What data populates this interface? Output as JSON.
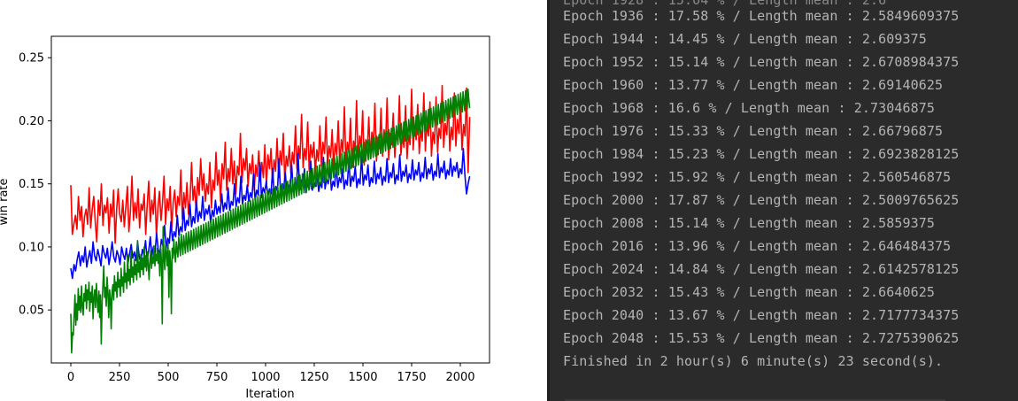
{
  "chart_data": {
    "type": "line",
    "xlabel": "Iteration",
    "ylabel": "win rate",
    "xlim": [
      -100,
      2150
    ],
    "ylim": [
      0.008,
      0.267
    ],
    "xticks": [
      0,
      250,
      500,
      750,
      1000,
      1250,
      1500,
      1750,
      2000
    ],
    "yticks": [
      0.05,
      0.1,
      0.15,
      0.2,
      0.25
    ],
    "ytick_labels": [
      "0.05",
      "0.10",
      "0.15",
      "0.20",
      "0.25"
    ],
    "grid": false,
    "series": [
      {
        "color": "#ff0000",
        "values": [
          0.149,
          0.11,
          0.118,
          0.125,
          0.114,
          0.14,
          0.121,
          0.132,
          0.108,
          0.124,
          0.13,
          0.118,
          0.147,
          0.115,
          0.13,
          0.14,
          0.12,
          0.104,
          0.137,
          0.125,
          0.15,
          0.117,
          0.133,
          0.127,
          0.139,
          0.111,
          0.134,
          0.124,
          0.145,
          0.103,
          0.13,
          0.146,
          0.126,
          0.12,
          0.137,
          0.116,
          0.131,
          0.148,
          0.112,
          0.128,
          0.156,
          0.121,
          0.135,
          0.123,
          0.146,
          0.115,
          0.134,
          0.129,
          0.142,
          0.11,
          0.133,
          0.152,
          0.12,
          0.137,
          0.126,
          0.147,
          0.108,
          0.131,
          0.144,
          0.121,
          0.135,
          0.156,
          0.118,
          0.138,
          0.129,
          0.148,
          0.114,
          0.136,
          0.145,
          0.124,
          0.14,
          0.133,
          0.161,
          0.122,
          0.143,
          0.131,
          0.151,
          0.126,
          0.138,
          0.167,
          0.137,
          0.148,
          0.129,
          0.155,
          0.141,
          0.17,
          0.145,
          0.158,
          0.136,
          0.15,
          0.142,
          0.167,
          0.131,
          0.153,
          0.145,
          0.175,
          0.149,
          0.161,
          0.136,
          0.166,
          0.154,
          0.183,
          0.145,
          0.162,
          0.152,
          0.178,
          0.15,
          0.168,
          0.142,
          0.164,
          0.157,
          0.19,
          0.151,
          0.17,
          0.161,
          0.178,
          0.148,
          0.166,
          0.158,
          0.173,
          0.145,
          0.165,
          0.156,
          0.176,
          0.152,
          0.167,
          0.155,
          0.181,
          0.149,
          0.173,
          0.162,
          0.178,
          0.151,
          0.169,
          0.16,
          0.186,
          0.155,
          0.176,
          0.165,
          0.19,
          0.153,
          0.172,
          0.164,
          0.18,
          0.158,
          0.175,
          0.166,
          0.196,
          0.162,
          0.18,
          0.17,
          0.205,
          0.163,
          0.178,
          0.169,
          0.199,
          0.16,
          0.181,
          0.171,
          0.183,
          0.159,
          0.177,
          0.168,
          0.196,
          0.164,
          0.183,
          0.174,
          0.203,
          0.165,
          0.18,
          0.171,
          0.193,
          0.162,
          0.182,
          0.173,
          0.2,
          0.166,
          0.185,
          0.175,
          0.211,
          0.167,
          0.183,
          0.174,
          0.202,
          0.163,
          0.184,
          0.176,
          0.216,
          0.168,
          0.188,
          0.179,
          0.208,
          0.165,
          0.185,
          0.177,
          0.203,
          0.17,
          0.191,
          0.18,
          0.214,
          0.168,
          0.187,
          0.178,
          0.21,
          0.172,
          0.193,
          0.182,
          0.218,
          0.169,
          0.19,
          0.181,
          0.206,
          0.171,
          0.192,
          0.183,
          0.22,
          0.173,
          0.188,
          0.179,
          0.212,
          0.17,
          0.189,
          0.181,
          0.225,
          0.177,
          0.196,
          0.185,
          0.213,
          0.174,
          0.193,
          0.184,
          0.222,
          0.176,
          0.197,
          0.188,
          0.215,
          0.172,
          0.191,
          0.182,
          0.219,
          0.175,
          0.194,
          0.186,
          0.228,
          0.179,
          0.198,
          0.189,
          0.217,
          0.176,
          0.195,
          0.185,
          0.222,
          0.18,
          0.201,
          0.19,
          0.216,
          0.177,
          0.197,
          0.188,
          0.226,
          0.159,
          0.203
        ]
      },
      {
        "color": "#0000ff",
        "values": [
          0.083,
          0.075,
          0.086,
          0.081,
          0.09,
          0.096,
          0.085,
          0.093,
          0.088,
          0.1,
          0.084,
          0.091,
          0.097,
          0.087,
          0.104,
          0.093,
          0.089,
          0.098,
          0.092,
          0.085,
          0.101,
          0.095,
          0.091,
          0.099,
          0.086,
          0.094,
          0.104,
          0.092,
          0.088,
          0.097,
          0.093,
          0.086,
          0.1,
          0.094,
          0.09,
          0.099,
          0.087,
          0.095,
          0.102,
          0.091,
          0.096,
          0.089,
          0.104,
          0.093,
          0.087,
          0.098,
          0.094,
          0.105,
          0.09,
          0.097,
          0.108,
          0.093,
          0.1,
          0.095,
          0.111,
          0.098,
          0.094,
          0.106,
          0.101,
          0.117,
          0.099,
          0.107,
          0.103,
          0.12,
          0.105,
          0.112,
          0.108,
          0.125,
          0.109,
          0.116,
          0.112,
          0.131,
          0.113,
          0.121,
          0.117,
          0.134,
          0.116,
          0.124,
          0.119,
          0.137,
          0.12,
          0.128,
          0.123,
          0.14,
          0.121,
          0.13,
          0.126,
          0.133,
          0.119,
          0.129,
          0.124,
          0.137,
          0.126,
          0.132,
          0.127,
          0.142,
          0.128,
          0.135,
          0.13,
          0.147,
          0.129,
          0.136,
          0.133,
          0.15,
          0.132,
          0.139,
          0.135,
          0.156,
          0.134,
          0.141,
          0.137,
          0.149,
          0.136,
          0.143,
          0.139,
          0.158,
          0.137,
          0.145,
          0.141,
          0.167,
          0.139,
          0.147,
          0.143,
          0.152,
          0.14,
          0.146,
          0.142,
          0.162,
          0.141,
          0.148,
          0.144,
          0.17,
          0.143,
          0.15,
          0.146,
          0.159,
          0.142,
          0.149,
          0.145,
          0.165,
          0.144,
          0.151,
          0.147,
          0.174,
          0.145,
          0.153,
          0.149,
          0.162,
          0.143,
          0.15,
          0.146,
          0.168,
          0.145,
          0.152,
          0.148,
          0.16,
          0.144,
          0.151,
          0.147,
          0.171,
          0.146,
          0.154,
          0.15,
          0.163,
          0.145,
          0.152,
          0.148,
          0.166,
          0.147,
          0.155,
          0.151,
          0.162,
          0.146,
          0.153,
          0.149,
          0.169,
          0.148,
          0.156,
          0.152,
          0.164,
          0.147,
          0.154,
          0.15,
          0.172,
          0.149,
          0.157,
          0.153,
          0.165,
          0.148,
          0.155,
          0.151,
          0.168,
          0.15,
          0.158,
          0.154,
          0.163,
          0.149,
          0.156,
          0.152,
          0.17,
          0.151,
          0.159,
          0.155,
          0.166,
          0.15,
          0.157,
          0.153,
          0.173,
          0.152,
          0.16,
          0.156,
          0.165,
          0.151,
          0.158,
          0.154,
          0.169,
          0.153,
          0.161,
          0.157,
          0.167,
          0.152,
          0.159,
          0.155,
          0.171,
          0.154,
          0.162,
          0.158,
          0.166,
          0.153,
          0.16,
          0.156,
          0.174,
          0.155,
          0.163,
          0.159,
          0.168,
          0.154,
          0.161,
          0.157,
          0.17,
          0.156,
          0.164,
          0.16,
          0.167,
          0.155,
          0.162,
          0.158,
          0.178,
          0.157,
          0.142,
          0.15,
          0.156
        ]
      },
      {
        "color": "#008000",
        "values": [
          0.047,
          0.016,
          0.032,
          0.03,
          0.045,
          0.062,
          0.038,
          0.055,
          0.042,
          0.067,
          0.05,
          0.061,
          0.048,
          0.069,
          0.053,
          0.046,
          0.063,
          0.057,
          0.07,
          0.051,
          0.066,
          0.058,
          0.072,
          0.049,
          0.064,
          0.056,
          0.069,
          0.043,
          0.06,
          0.066,
          0.052,
          0.071,
          0.058,
          0.048,
          0.065,
          0.044,
          0.062,
          0.023,
          0.057,
          0.07,
          0.085,
          0.06,
          0.068,
          0.053,
          0.076,
          0.064,
          0.044,
          0.066,
          0.059,
          0.035,
          0.063,
          0.07,
          0.058,
          0.077,
          0.065,
          0.072,
          0.06,
          0.08,
          0.068,
          0.074,
          0.061,
          0.083,
          0.069,
          0.076,
          0.064,
          0.088,
          0.072,
          0.079,
          0.067,
          0.094,
          0.073,
          0.082,
          0.07,
          0.097,
          0.076,
          0.084,
          0.072,
          0.09,
          0.078,
          0.086,
          0.074,
          0.105,
          0.08,
          0.088,
          0.076,
          0.094,
          0.082,
          0.091,
          0.078,
          0.1,
          0.084,
          0.093,
          0.081,
          0.096,
          0.086,
          0.074,
          0.089,
          0.097,
          0.083,
          0.092,
          0.087,
          0.101,
          0.085,
          0.094,
          0.089,
          0.099,
          0.087,
          0.095,
          0.077,
          0.1,
          0.089,
          0.039,
          0.116,
          0.093,
          0.082,
          0.102,
          0.094,
          0.085,
          0.103,
          0.06,
          0.097,
          0.088,
          0.047,
          0.099,
          0.091,
          0.106,
          0.095,
          0.088,
          0.104,
          0.097,
          0.092,
          0.108,
          0.1,
          0.093,
          0.11,
          0.101,
          0.094,
          0.109,
          0.102,
          0.095,
          0.111,
          0.103,
          0.096,
          0.112,
          0.104,
          0.097,
          0.113,
          0.105,
          0.098,
          0.114,
          0.106,
          0.099,
          0.115,
          0.107,
          0.1,
          0.116,
          0.108,
          0.101,
          0.117,
          0.109,
          0.102,
          0.118,
          0.11,
          0.103,
          0.119,
          0.111,
          0.104,
          0.12,
          0.112,
          0.105,
          0.121,
          0.113,
          0.106,
          0.122,
          0.114,
          0.107,
          0.123,
          0.115,
          0.108,
          0.124,
          0.116,
          0.109,
          0.125,
          0.117,
          0.11,
          0.126,
          0.118,
          0.111,
          0.127,
          0.119,
          0.112,
          0.128,
          0.12,
          0.113,
          0.129,
          0.121,
          0.114,
          0.13,
          0.122,
          0.115,
          0.131,
          0.123,
          0.116,
          0.132,
          0.124,
          0.117,
          0.133,
          0.125,
          0.118,
          0.134,
          0.126,
          0.119,
          0.135,
          0.127,
          0.12,
          0.136,
          0.128,
          0.121,
          0.137,
          0.129,
          0.122,
          0.138,
          0.13,
          0.123,
          0.139,
          0.131,
          0.124,
          0.14,
          0.132,
          0.125,
          0.141,
          0.133,
          0.126,
          0.142,
          0.134,
          0.127,
          0.143,
          0.135,
          0.128,
          0.144,
          0.136,
          0.129,
          0.145,
          0.137,
          0.13,
          0.146,
          0.138,
          0.131,
          0.147,
          0.139,
          0.132,
          0.148,
          0.14,
          0.133,
          0.149,
          0.141,
          0.134,
          0.15,
          0.142,
          0.135,
          0.151,
          0.143,
          0.136,
          0.152,
          0.144,
          0.137,
          0.153,
          0.145,
          0.138,
          0.154,
          0.146,
          0.139,
          0.155,
          0.147,
          0.14,
          0.156,
          0.148,
          0.141,
          0.157,
          0.149,
          0.142,
          0.158,
          0.15,
          0.143,
          0.159,
          0.151,
          0.144,
          0.16,
          0.152,
          0.145,
          0.161,
          0.153,
          0.146,
          0.162,
          0.154,
          0.147,
          0.163,
          0.155,
          0.148,
          0.164,
          0.156,
          0.149,
          0.165,
          0.157,
          0.15,
          0.166,
          0.158,
          0.151,
          0.167,
          0.159,
          0.152,
          0.168,
          0.16,
          0.153,
          0.169,
          0.161,
          0.154,
          0.17,
          0.162,
          0.155,
          0.171,
          0.163,
          0.156,
          0.172,
          0.164,
          0.157,
          0.173,
          0.165,
          0.158,
          0.174,
          0.166,
          0.159,
          0.175,
          0.167,
          0.16,
          0.176,
          0.168,
          0.161,
          0.177,
          0.169,
          0.162,
          0.178,
          0.17,
          0.163,
          0.179,
          0.171,
          0.164,
          0.18,
          0.172,
          0.165,
          0.181,
          0.173,
          0.166,
          0.182,
          0.174,
          0.167,
          0.183,
          0.175,
          0.168,
          0.184,
          0.176,
          0.169,
          0.185,
          0.177,
          0.17,
          0.186,
          0.178,
          0.171,
          0.187,
          0.179,
          0.172,
          0.188,
          0.18,
          0.173,
          0.189,
          0.181,
          0.174,
          0.19,
          0.182,
          0.175,
          0.191,
          0.183,
          0.176,
          0.192,
          0.184,
          0.177,
          0.193,
          0.185,
          0.178,
          0.194,
          0.186,
          0.179,
          0.195,
          0.187,
          0.18,
          0.196,
          0.188,
          0.181,
          0.197,
          0.189,
          0.182,
          0.198,
          0.19,
          0.183,
          0.199,
          0.191,
          0.184,
          0.2,
          0.192,
          0.185,
          0.201,
          0.193,
          0.186,
          0.202,
          0.194,
          0.187,
          0.203,
          0.195,
          0.188,
          0.204,
          0.196,
          0.189,
          0.205,
          0.197,
          0.19,
          0.206,
          0.198,
          0.191,
          0.207,
          0.199,
          0.192,
          0.208,
          0.2,
          0.193,
          0.209,
          0.201,
          0.194,
          0.21,
          0.202,
          0.195,
          0.211,
          0.203,
          0.196,
          0.212,
          0.204,
          0.197,
          0.213,
          0.205,
          0.198,
          0.214,
          0.206,
          0.199,
          0.215,
          0.207,
          0.2,
          0.216,
          0.208,
          0.201,
          0.217,
          0.209,
          0.202,
          0.218,
          0.21,
          0.203,
          0.219,
          0.211,
          0.204,
          0.22,
          0.212,
          0.205,
          0.221,
          0.213,
          0.206,
          0.222,
          0.214,
          0.207,
          0.223,
          0.215,
          0.208,
          0.224,
          0.216,
          0.209,
          0.225,
          0.217,
          0.21
        ]
      }
    ]
  },
  "console": {
    "top_partial": "Epoch 1928 : 15.04 % / Length mean : 2.6",
    "lines": [
      "Epoch 1936 : 17.58 % / Length mean : 2.5849609375",
      "Epoch 1944 : 14.45 % / Length mean : 2.609375",
      "Epoch 1952 : 15.14 % / Length mean : 2.6708984375",
      "Epoch 1960 : 13.77 % / Length mean : 2.69140625",
      "Epoch 1968 : 16.6 % / Length mean : 2.73046875",
      "Epoch 1976 : 15.33 % / Length mean : 2.66796875",
      "Epoch 1984 : 15.23 % / Length mean : 2.6923828125",
      "Epoch 1992 : 15.92 % / Length mean : 2.560546875",
      "Epoch 2000 : 17.87 % / Length mean : 2.5009765625",
      "Epoch 2008 : 15.14 % / Length mean : 2.5859375",
      "Epoch 2016 : 13.96 % / Length mean : 2.646484375",
      "Epoch 2024 : 14.84 % / Length mean : 2.6142578125",
      "Epoch 2032 : 15.43 % / Length mean : 2.6640625",
      "Epoch 2040 : 13.67 % / Length mean : 2.7177734375",
      "Epoch 2048 : 15.53 % / Length mean : 2.7275390625"
    ],
    "finished": "Finished in 2 hour(s) 6 minute(s) 23 second(s)."
  }
}
